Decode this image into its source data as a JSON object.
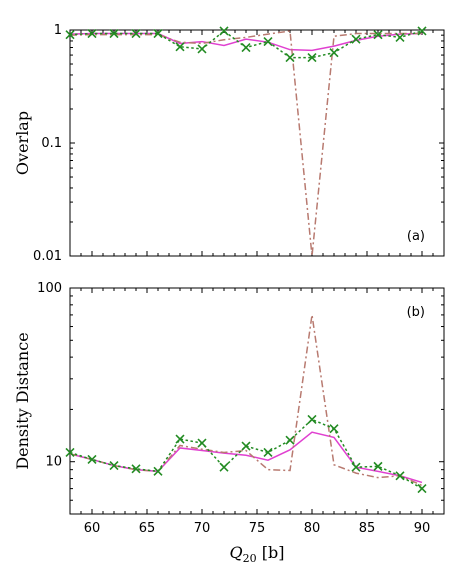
{
  "chart_data": [
    {
      "type": "line",
      "panel_label": "(a)",
      "ylabel": "Overlap",
      "yscale": "log",
      "ylim": [
        0.01,
        1
      ],
      "yticks": [
        {
          "v": 0.01,
          "label": "0.01"
        },
        {
          "v": 0.1,
          "label": "0.1"
        },
        {
          "v": 1,
          "label": "1"
        }
      ],
      "xlim": [
        58,
        92
      ],
      "series": [
        {
          "style": "solid",
          "color": "#e040d0",
          "x": [
            58,
            60,
            62,
            64,
            66,
            68,
            70,
            72,
            74,
            76,
            78,
            80,
            82,
            84,
            86,
            88,
            90
          ],
          "y": [
            0.92,
            0.93,
            0.93,
            0.93,
            0.93,
            0.76,
            0.79,
            0.73,
            0.83,
            0.78,
            0.67,
            0.66,
            0.72,
            0.81,
            0.88,
            0.92,
            0.93
          ]
        },
        {
          "style": "dashdot",
          "color": "#b87a70",
          "x": [
            58,
            60,
            62,
            64,
            66,
            68,
            70,
            72,
            74,
            76,
            78,
            80,
            82,
            84,
            86,
            88,
            90
          ],
          "y": [
            0.9,
            0.91,
            0.91,
            0.91,
            0.91,
            0.78,
            0.76,
            0.82,
            0.86,
            0.92,
            0.98,
            0.01,
            0.88,
            0.93,
            0.93,
            0.93,
            0.93
          ]
        },
        {
          "style": "dotted",
          "color": "#228b22",
          "marker": "x",
          "x": [
            58,
            60,
            62,
            64,
            66,
            68,
            70,
            72,
            74,
            76,
            78,
            80,
            82,
            84,
            86,
            88,
            90
          ],
          "y": [
            0.91,
            0.93,
            0.93,
            0.93,
            0.93,
            0.71,
            0.68,
            0.98,
            0.7,
            0.79,
            0.57,
            0.57,
            0.63,
            0.83,
            0.91,
            0.86,
            0.98
          ]
        }
      ]
    },
    {
      "type": "line",
      "panel_label": "(b)",
      "ylabel": "Density Distance",
      "yscale": "log",
      "ylim": [
        5,
        100
      ],
      "yticks": [
        {
          "v": 10,
          "label": "10"
        },
        {
          "v": 100,
          "label": "100"
        }
      ],
      "xlim": [
        58,
        92
      ],
      "xlabel": "Q20 [b]",
      "xticks": [
        60,
        65,
        70,
        75,
        80,
        85,
        90
      ],
      "series": [
        {
          "style": "solid",
          "color": "#e040d0",
          "x": [
            58,
            60,
            62,
            64,
            66,
            68,
            70,
            72,
            74,
            76,
            78,
            80,
            82,
            84,
            86,
            88,
            90
          ],
          "y": [
            11.1,
            10.3,
            9.5,
            9.0,
            8.8,
            12.0,
            11.6,
            11.2,
            10.9,
            10.2,
            11.7,
            14.8,
            13.8,
            9.3,
            8.8,
            8.3,
            7.6
          ]
        },
        {
          "style": "dashdot",
          "color": "#b87a70",
          "x": [
            58,
            60,
            62,
            64,
            66,
            68,
            70,
            72,
            74,
            76,
            78,
            80,
            82,
            84,
            86,
            88,
            90
          ],
          "y": [
            11.1,
            10.3,
            9.5,
            9.0,
            8.8,
            12.4,
            11.8,
            11.3,
            11.6,
            9.0,
            8.9,
            70,
            9.6,
            8.6,
            8.1,
            8.3,
            7.3
          ]
        },
        {
          "style": "dotted",
          "color": "#228b22",
          "marker": "x",
          "x": [
            58,
            60,
            62,
            64,
            66,
            68,
            70,
            72,
            74,
            76,
            78,
            80,
            82,
            84,
            86,
            88,
            90
          ],
          "y": [
            11.3,
            10.3,
            9.5,
            9.1,
            8.8,
            13.5,
            12.8,
            9.3,
            12.3,
            11.3,
            13.3,
            17.5,
            15.5,
            9.3,
            9.4,
            8.3,
            7.0
          ]
        }
      ]
    }
  ]
}
